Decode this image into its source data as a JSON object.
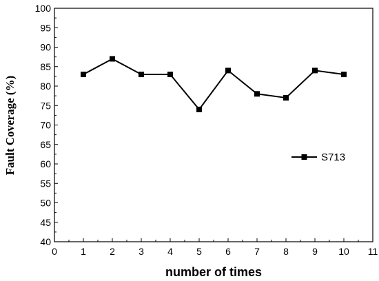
{
  "chart_data": {
    "type": "line",
    "title": "",
    "xlabel": "number of times",
    "ylabel": "Fault Coverage (%)",
    "xlim": [
      0,
      11
    ],
    "ylim": [
      40,
      100
    ],
    "x_ticks": [
      0,
      1,
      2,
      3,
      4,
      5,
      6,
      7,
      8,
      9,
      10,
      11
    ],
    "y_ticks": [
      40,
      45,
      50,
      55,
      60,
      65,
      70,
      75,
      80,
      85,
      90,
      95,
      100
    ],
    "grid": false,
    "legend_position": "right",
    "series": [
      {
        "name": "S713",
        "marker": "square",
        "color": "#000000",
        "x": [
          1,
          2,
          3,
          4,
          5,
          6,
          7,
          8,
          9,
          10
        ],
        "y": [
          83,
          87,
          83,
          83,
          74,
          84,
          78,
          77,
          84,
          83
        ]
      }
    ]
  }
}
